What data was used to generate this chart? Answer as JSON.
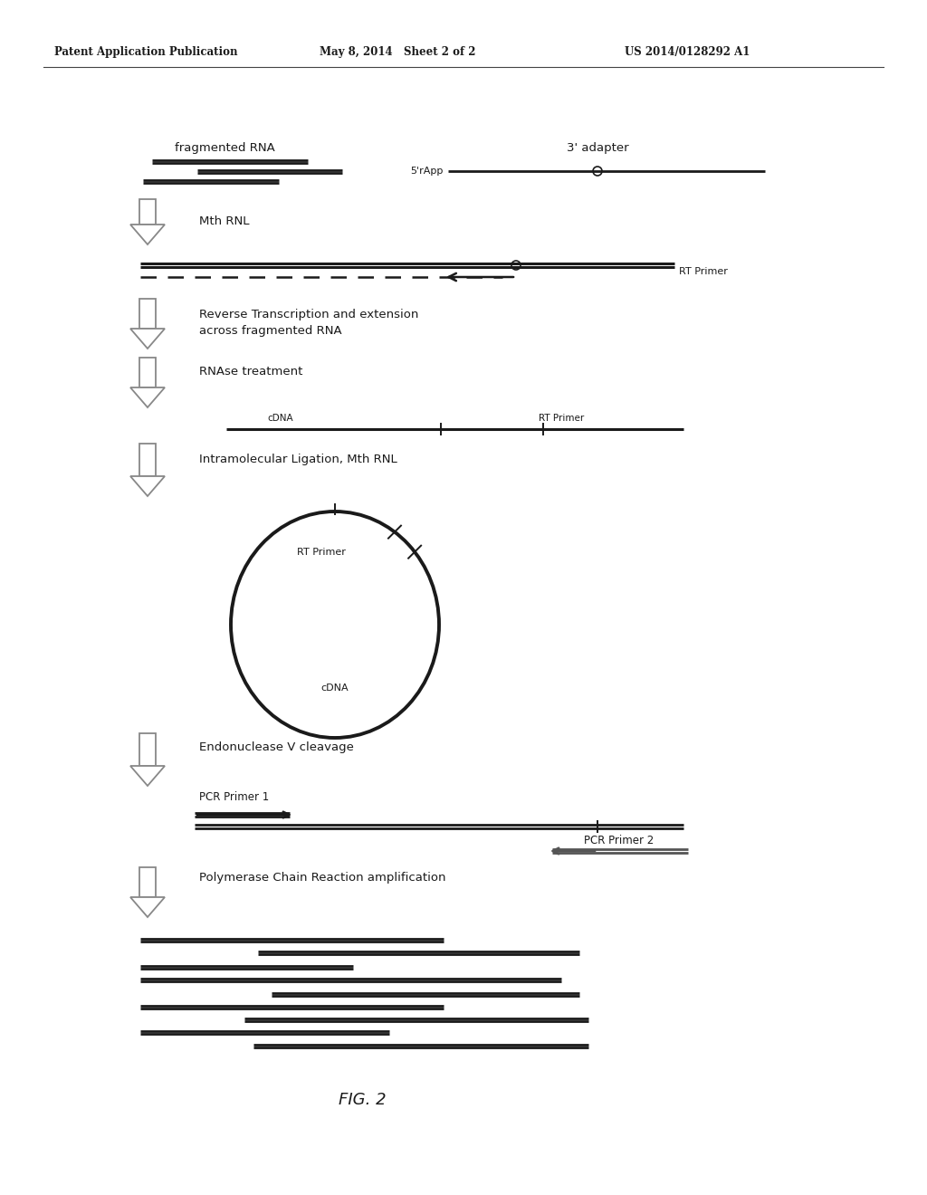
{
  "header_left": "Patent Application Publication",
  "header_mid": "May 8, 2014   Sheet 2 of 2",
  "header_right": "US 2014/0128292 A1",
  "figure_label": "FIG. 2",
  "bg_color": "#ffffff",
  "text_color": "#1a1a1a",
  "gray_color": "#aaaaaa"
}
